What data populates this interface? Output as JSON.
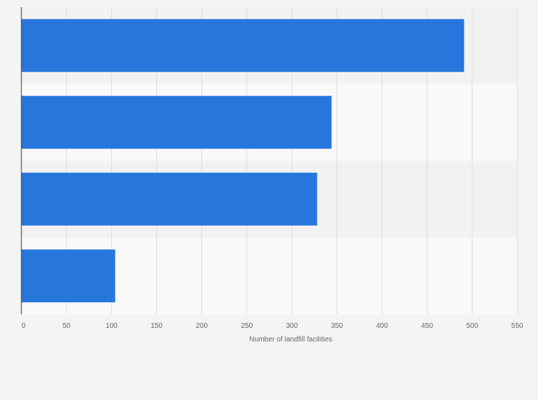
{
  "chart_data": {
    "type": "bar",
    "orientation": "horizontal",
    "title": "",
    "xlabel": "Number of landfill facilities",
    "ylabel": "",
    "categories": [
      "",
      "",
      "",
      ""
    ],
    "values": [
      491,
      344,
      328,
      104
    ],
    "xlim": [
      0,
      550
    ],
    "x_ticks": [
      0,
      50,
      100,
      150,
      200,
      250,
      300,
      350,
      400,
      450,
      500,
      550
    ],
    "grid": true,
    "legend": "none",
    "bar_color": "#2776dc"
  },
  "colors": {
    "background": "#f4f4f4",
    "band_dark": "#f2f2f2",
    "band_light": "#f9f9f9",
    "gridline": "#dddddd",
    "axis": "#333333",
    "text": "#666666"
  }
}
